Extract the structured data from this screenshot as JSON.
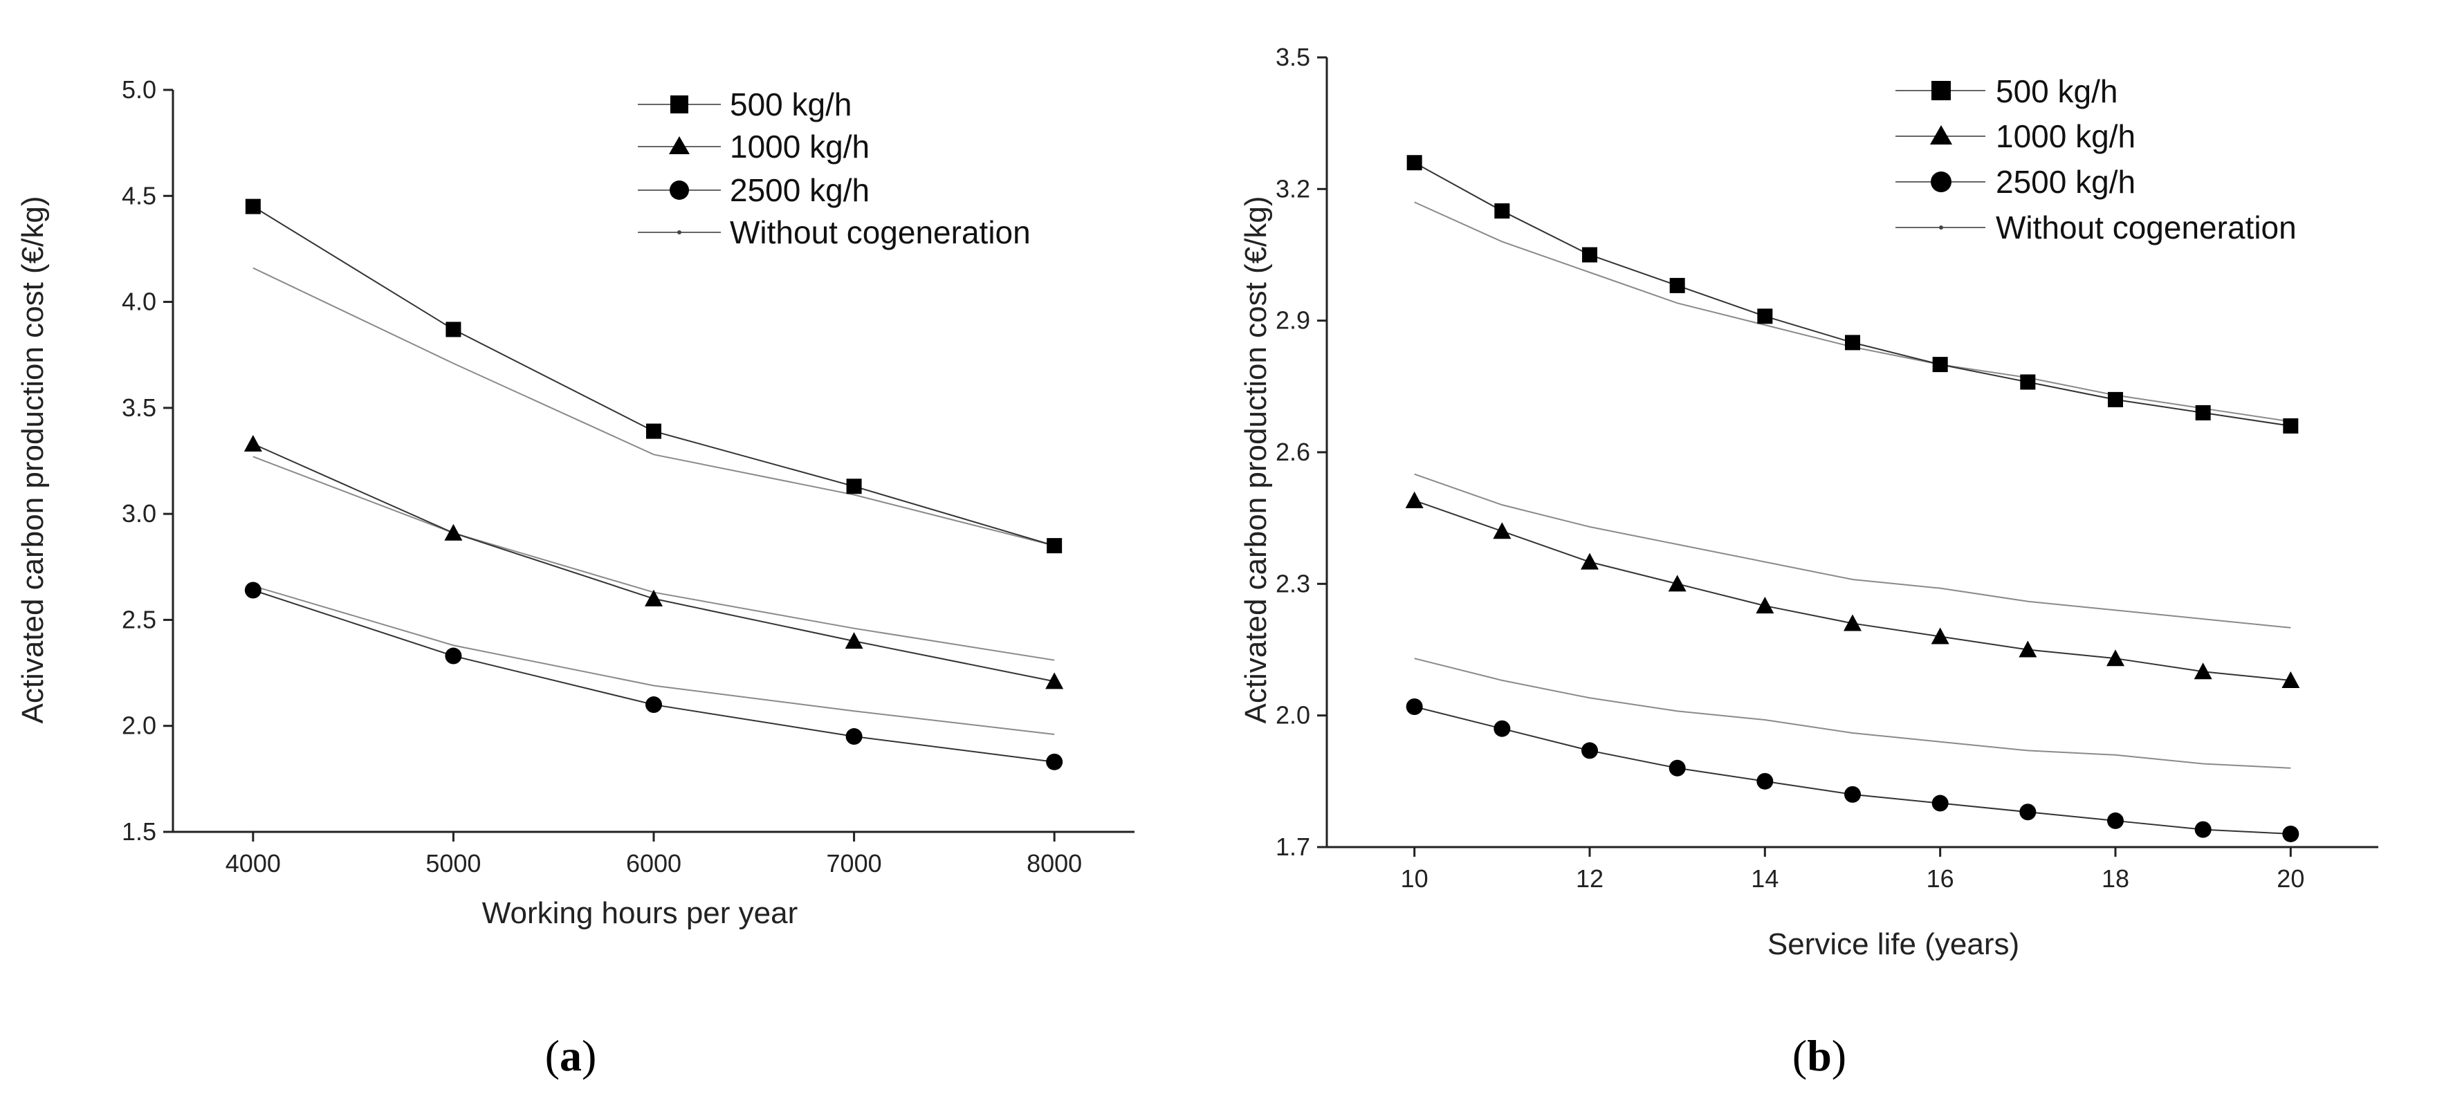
{
  "chart_data": [
    {
      "type": "line",
      "panel_label": {
        "open": "(",
        "letter": "a",
        "close": ")"
      },
      "xlabel": "Working hours per year",
      "ylabel": "Activated carbon production cost (€/kg)",
      "xlim": [
        3600,
        8400
      ],
      "ylim": [
        1.5,
        5.0
      ],
      "xticks": [
        4000,
        5000,
        6000,
        7000,
        8000
      ],
      "xtick_labels": [
        "4000",
        "5000",
        "6000",
        "7000",
        "8000"
      ],
      "yticks": [
        1.5,
        2.0,
        2.5,
        3.0,
        3.5,
        4.0,
        4.5,
        5.0
      ],
      "ytick_labels": [
        "1.5",
        "2.0",
        "2.5",
        "3.0",
        "3.5",
        "4.0",
        "4.5",
        "5.0"
      ],
      "legend_position": "top-right",
      "legend": [
        "500 kg/h",
        "1000 kg/h",
        "2500 kg/h",
        "Without cogeneration"
      ],
      "x": [
        4000,
        5000,
        6000,
        7000,
        8000
      ],
      "series": [
        {
          "name": "500 kg/h",
          "marker": "square",
          "values": [
            4.45,
            3.87,
            3.39,
            3.13,
            2.85
          ]
        },
        {
          "name": "1000 kg/h",
          "marker": "triangle",
          "values": [
            3.33,
            2.91,
            2.6,
            2.4,
            2.21
          ]
        },
        {
          "name": "2500 kg/h",
          "marker": "circle",
          "values": [
            2.64,
            2.33,
            2.1,
            1.95,
            1.83
          ]
        }
      ],
      "without_cogeneration": [
        {
          "values": [
            4.16,
            3.71,
            3.28,
            3.09,
            2.85
          ]
        },
        {
          "values": [
            3.27,
            2.91,
            2.63,
            2.46,
            2.31
          ]
        },
        {
          "values": [
            2.66,
            2.38,
            2.19,
            2.07,
            1.96
          ]
        }
      ]
    },
    {
      "type": "line",
      "panel_label": {
        "open": "(",
        "letter": "b",
        "close": ")"
      },
      "xlabel": "Service life (years)",
      "ylabel": "Activated carbon production cost (€/kg)",
      "xlim": [
        9,
        21
      ],
      "ylim": [
        1.7,
        3.5
      ],
      "xticks": [
        10,
        12,
        14,
        16,
        18,
        20
      ],
      "xtick_labels": [
        "10",
        "12",
        "14",
        "16",
        "18",
        "20"
      ],
      "yticks": [
        1.7,
        2.0,
        2.3,
        2.6,
        2.9,
        3.2,
        3.5
      ],
      "ytick_labels": [
        "1.7",
        "2.0",
        "2.3",
        "2.6",
        "2.9",
        "3.2",
        "3.5"
      ],
      "legend_position": "top-right",
      "legend": [
        "500 kg/h",
        "1000 kg/h",
        "2500 kg/h",
        "Without cogeneration"
      ],
      "x": [
        10,
        11,
        12,
        13,
        14,
        15,
        16,
        17,
        18,
        19,
        20
      ],
      "series": [
        {
          "name": "500 kg/h",
          "marker": "square",
          "values": [
            3.26,
            3.15,
            3.05,
            2.98,
            2.91,
            2.85,
            2.8,
            2.76,
            2.72,
            2.69,
            2.66
          ]
        },
        {
          "name": "1000 kg/h",
          "marker": "triangle",
          "values": [
            2.49,
            2.42,
            2.35,
            2.3,
            2.25,
            2.21,
            2.18,
            2.15,
            2.13,
            2.1,
            2.08
          ]
        },
        {
          "name": "2500 kg/h",
          "marker": "circle",
          "values": [
            2.02,
            1.97,
            1.92,
            1.88,
            1.85,
            1.82,
            1.8,
            1.78,
            1.76,
            1.74,
            1.73
          ]
        }
      ],
      "without_cogeneration": [
        {
          "values": [
            3.17,
            3.08,
            3.01,
            2.94,
            2.89,
            2.84,
            2.8,
            2.77,
            2.73,
            2.7,
            2.67
          ]
        },
        {
          "values": [
            2.55,
            2.48,
            2.43,
            2.39,
            2.35,
            2.31,
            2.29,
            2.26,
            2.24,
            2.22,
            2.2
          ]
        },
        {
          "values": [
            2.13,
            2.08,
            2.04,
            2.01,
            1.99,
            1.96,
            1.94,
            1.92,
            1.91,
            1.89,
            1.88
          ]
        }
      ]
    }
  ]
}
